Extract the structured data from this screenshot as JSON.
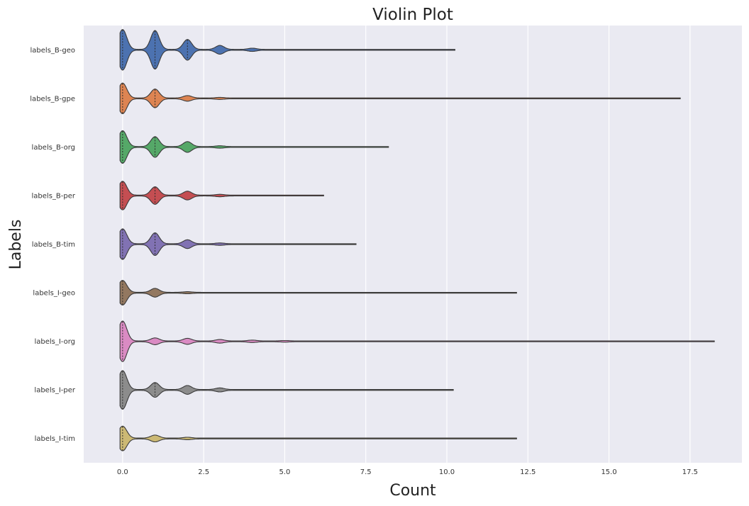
{
  "chart_data": {
    "type": "violin",
    "orientation": "horizontal",
    "title": "Violin Plot",
    "xlabel": "Count",
    "ylabel": "Labels",
    "xlim": [
      -1.2,
      19.1
    ],
    "x_ticks": [
      0.0,
      2.5,
      5.0,
      7.5,
      10.0,
      12.5,
      15.0,
      17.5
    ],
    "x_tick_labels": [
      "0.0",
      "2.5",
      "5.0",
      "7.5",
      "10.0",
      "12.5",
      "15.0",
      "17.5"
    ],
    "grid": true,
    "inner": "stick",
    "categories": [
      "labels_B-geo",
      "labels_B-gpe",
      "labels_B-org",
      "labels_B-per",
      "labels_B-tim",
      "labels_I-geo",
      "labels_I-org",
      "labels_I-per",
      "labels_I-tim"
    ],
    "series": [
      {
        "color": "#4c72b0",
        "max": 10.25,
        "peaks": [
          [
            0,
            1.0
          ],
          [
            1,
            0.95
          ],
          [
            2,
            0.5
          ],
          [
            3,
            0.2
          ],
          [
            4,
            0.06
          ]
        ]
      },
      {
        "color": "#dd8452",
        "max": 17.2,
        "peaks": [
          [
            0,
            0.75
          ],
          [
            1,
            0.45
          ],
          [
            2,
            0.12
          ],
          [
            3,
            0.03
          ]
        ]
      },
      {
        "color": "#55a868",
        "max": 8.2,
        "peaks": [
          [
            0,
            0.8
          ],
          [
            1,
            0.5
          ],
          [
            2,
            0.25
          ],
          [
            3,
            0.04
          ]
        ]
      },
      {
        "color": "#c44e52",
        "max": 6.2,
        "peaks": [
          [
            0,
            0.7
          ],
          [
            1,
            0.42
          ],
          [
            2,
            0.2
          ],
          [
            3,
            0.04
          ]
        ]
      },
      {
        "color": "#8172b3",
        "max": 7.2,
        "peaks": [
          [
            0,
            0.75
          ],
          [
            1,
            0.55
          ],
          [
            2,
            0.2
          ],
          [
            3,
            0.04
          ]
        ]
      },
      {
        "color": "#937860",
        "max": 12.15,
        "peaks": [
          [
            0,
            0.6
          ],
          [
            1,
            0.2
          ],
          [
            2,
            0.03
          ]
        ]
      },
      {
        "color": "#da8bc3",
        "max": 18.25,
        "peaks": [
          [
            0,
            1.0
          ],
          [
            1,
            0.15
          ],
          [
            2,
            0.13
          ],
          [
            3,
            0.07
          ],
          [
            4,
            0.04
          ],
          [
            5,
            0.02
          ]
        ]
      },
      {
        "color": "#8c8c8c",
        "max": 10.2,
        "peaks": [
          [
            0,
            0.95
          ],
          [
            1,
            0.35
          ],
          [
            2,
            0.2
          ],
          [
            3,
            0.08
          ]
        ]
      },
      {
        "color": "#ccb974",
        "max": 12.15,
        "peaks": [
          [
            0,
            0.6
          ],
          [
            1,
            0.15
          ],
          [
            2,
            0.04
          ]
        ]
      }
    ]
  }
}
